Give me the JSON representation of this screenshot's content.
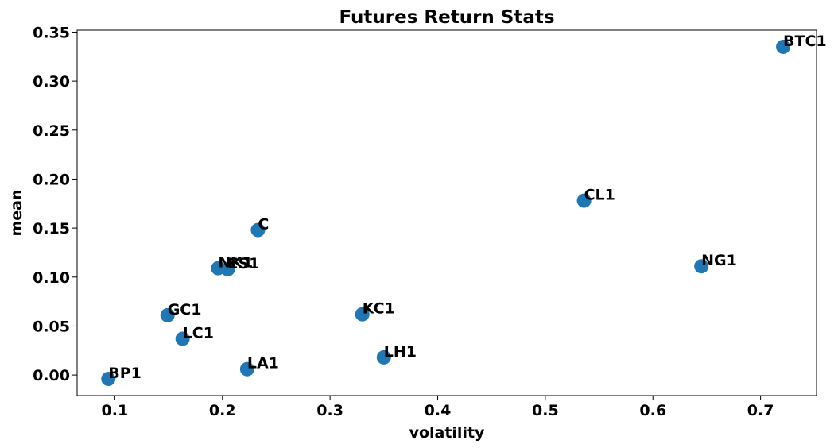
{
  "chart_data": {
    "type": "scatter",
    "title": "Futures Return Stats",
    "xlabel": "volatility",
    "ylabel": "mean",
    "xlim": [
      0.065,
      0.752
    ],
    "ylim": [
      -0.021,
      0.352
    ],
    "xticks": [
      "0.1",
      "0.2",
      "0.3",
      "0.4",
      "0.5",
      "0.6",
      "0.7"
    ],
    "yticks": [
      "0.00",
      "0.05",
      "0.10",
      "0.15",
      "0.20",
      "0.25",
      "0.30",
      "0.35"
    ],
    "grid": false,
    "marker_color": "#1f77b4",
    "points": [
      {
        "label": "BTC1",
        "x": 0.721,
        "y": 0.335
      },
      {
        "label": "CL1",
        "x": 0.536,
        "y": 0.178
      },
      {
        "label": "C",
        "x": 0.233,
        "y": 0.148
      },
      {
        "label": "NG1",
        "x": 0.645,
        "y": 0.111
      },
      {
        "label": "NK1",
        "x": 0.196,
        "y": 0.109
      },
      {
        "label": "ES1",
        "x": 0.205,
        "y": 0.108
      },
      {
        "label": "GC1",
        "x": 0.149,
        "y": 0.061
      },
      {
        "label": "KC1",
        "x": 0.33,
        "y": 0.062
      },
      {
        "label": "LC1",
        "x": 0.163,
        "y": 0.037
      },
      {
        "label": "LH1",
        "x": 0.35,
        "y": 0.018
      },
      {
        "label": "LA1",
        "x": 0.223,
        "y": 0.006
      },
      {
        "label": "BP1",
        "x": 0.094,
        "y": -0.004
      }
    ]
  }
}
